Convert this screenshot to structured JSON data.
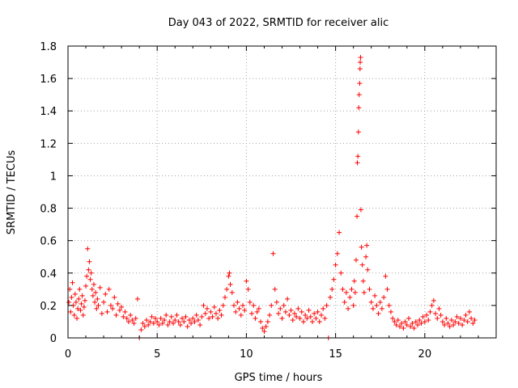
{
  "chart_data": {
    "type": "scatter",
    "title": "Day 043 of 2022, SRMTID for receiver alic",
    "xlabel": "GPS time / hours",
    "ylabel": "SRMTID / TECUs",
    "xlim": [
      0,
      24
    ],
    "ylim": [
      0,
      1.8
    ],
    "xticks": [
      0,
      5,
      10,
      15,
      20
    ],
    "yticks": [
      0,
      0.2,
      0.4,
      0.6,
      0.8,
      1,
      1.2,
      1.4,
      1.6,
      1.8
    ],
    "ytick_labels": [
      "0",
      "0.2",
      "0.4",
      "0.6",
      "0.8",
      "1",
      "1.2",
      "1.4",
      "1.6",
      "1.8"
    ],
    "grid": true,
    "marker": "+",
    "color": "#ff0000",
    "series": [
      {
        "name": "SRMTID",
        "points": [
          [
            0.05,
            0.22
          ],
          [
            0.1,
            0.3
          ],
          [
            0.15,
            0.16
          ],
          [
            0.2,
            0.25
          ],
          [
            0.25,
            0.34
          ],
          [
            0.3,
            0.2
          ],
          [
            0.35,
            0.14
          ],
          [
            0.4,
            0.27
          ],
          [
            0.45,
            0.22
          ],
          [
            0.5,
            0.12
          ],
          [
            0.55,
            0.18
          ],
          [
            0.6,
            0.24
          ],
          [
            0.65,
            0.3
          ],
          [
            0.7,
            0.17
          ],
          [
            0.75,
            0.21
          ],
          [
            0.8,
            0.26
          ],
          [
            0.85,
            0.14
          ],
          [
            0.9,
            0.19
          ],
          [
            0.95,
            0.23
          ],
          [
            1.0,
            0.32
          ],
          [
            1.05,
            0.38
          ],
          [
            1.1,
            0.55
          ],
          [
            1.15,
            0.42
          ],
          [
            1.2,
            0.47
          ],
          [
            1.25,
            0.36
          ],
          [
            1.3,
            0.4
          ],
          [
            1.35,
            0.3
          ],
          [
            1.4,
            0.26
          ],
          [
            1.45,
            0.33
          ],
          [
            1.5,
            0.22
          ],
          [
            1.55,
            0.28
          ],
          [
            1.6,
            0.18
          ],
          [
            1.65,
            0.24
          ],
          [
            1.7,
            0.2
          ],
          [
            1.8,
            0.31
          ],
          [
            1.9,
            0.15
          ],
          [
            2.0,
            0.22
          ],
          [
            2.1,
            0.27
          ],
          [
            2.2,
            0.16
          ],
          [
            2.3,
            0.3
          ],
          [
            2.4,
            0.2
          ],
          [
            2.5,
            0.18
          ],
          [
            2.6,
            0.25
          ],
          [
            2.7,
            0.14
          ],
          [
            2.8,
            0.21
          ],
          [
            2.9,
            0.17
          ],
          [
            3.0,
            0.19
          ],
          [
            3.1,
            0.13
          ],
          [
            3.2,
            0.16
          ],
          [
            3.3,
            0.12
          ],
          [
            3.4,
            0.1
          ],
          [
            3.5,
            0.14
          ],
          [
            3.6,
            0.11
          ],
          [
            3.7,
            0.09
          ],
          [
            3.8,
            0.12
          ],
          [
            3.9,
            0.24
          ],
          [
            4.0,
            0.0
          ],
          [
            4.1,
            0.05
          ],
          [
            4.2,
            0.09
          ],
          [
            4.3,
            0.07
          ],
          [
            4.4,
            0.11
          ],
          [
            4.5,
            0.08
          ],
          [
            4.6,
            0.1
          ],
          [
            4.7,
            0.13
          ],
          [
            4.8,
            0.09
          ],
          [
            4.9,
            0.12
          ],
          [
            5.0,
            0.1
          ],
          [
            5.1,
            0.08
          ],
          [
            5.2,
            0.12
          ],
          [
            5.3,
            0.09
          ],
          [
            5.4,
            0.11
          ],
          [
            5.5,
            0.14
          ],
          [
            5.6,
            0.08
          ],
          [
            5.7,
            0.1
          ],
          [
            5.8,
            0.13
          ],
          [
            5.9,
            0.09
          ],
          [
            6.0,
            0.11
          ],
          [
            6.1,
            0.14
          ],
          [
            6.2,
            0.1
          ],
          [
            6.3,
            0.08
          ],
          [
            6.4,
            0.12
          ],
          [
            6.5,
            0.1
          ],
          [
            6.6,
            0.13
          ],
          [
            6.7,
            0.07
          ],
          [
            6.8,
            0.11
          ],
          [
            6.9,
            0.09
          ],
          [
            7.0,
            0.12
          ],
          [
            7.1,
            0.1
          ],
          [
            7.2,
            0.14
          ],
          [
            7.3,
            0.11
          ],
          [
            7.4,
            0.08
          ],
          [
            7.5,
            0.13
          ],
          [
            7.6,
            0.2
          ],
          [
            7.7,
            0.15
          ],
          [
            7.8,
            0.18
          ],
          [
            7.9,
            0.12
          ],
          [
            8.0,
            0.16
          ],
          [
            8.1,
            0.13
          ],
          [
            8.2,
            0.19
          ],
          [
            8.3,
            0.15
          ],
          [
            8.4,
            0.12
          ],
          [
            8.5,
            0.17
          ],
          [
            8.6,
            0.14
          ],
          [
            8.7,
            0.2
          ],
          [
            8.8,
            0.25
          ],
          [
            8.9,
            0.3
          ],
          [
            9.0,
            0.38
          ],
          [
            9.05,
            0.4
          ],
          [
            9.1,
            0.33
          ],
          [
            9.2,
            0.28
          ],
          [
            9.3,
            0.2
          ],
          [
            9.4,
            0.16
          ],
          [
            9.5,
            0.22
          ],
          [
            9.6,
            0.18
          ],
          [
            9.7,
            0.14
          ],
          [
            9.8,
            0.2
          ],
          [
            9.9,
            0.17
          ],
          [
            10.0,
            0.35
          ],
          [
            10.1,
            0.3
          ],
          [
            10.2,
            0.22
          ],
          [
            10.3,
            0.15
          ],
          [
            10.4,
            0.2
          ],
          [
            10.5,
            0.12
          ],
          [
            10.6,
            0.16
          ],
          [
            10.7,
            0.18
          ],
          [
            10.8,
            0.1
          ],
          [
            10.9,
            0.06
          ],
          [
            11.0,
            0.04
          ],
          [
            11.1,
            0.07
          ],
          [
            11.2,
            0.1
          ],
          [
            11.3,
            0.14
          ],
          [
            11.4,
            0.2
          ],
          [
            11.5,
            0.52
          ],
          [
            11.6,
            0.3
          ],
          [
            11.7,
            0.22
          ],
          [
            11.8,
            0.15
          ],
          [
            11.9,
            0.18
          ],
          [
            12.0,
            0.12
          ],
          [
            12.1,
            0.2
          ],
          [
            12.2,
            0.16
          ],
          [
            12.3,
            0.24
          ],
          [
            12.4,
            0.14
          ],
          [
            12.5,
            0.17
          ],
          [
            12.6,
            0.11
          ],
          [
            12.7,
            0.15
          ],
          [
            12.8,
            0.13
          ],
          [
            12.9,
            0.18
          ],
          [
            13.0,
            0.12
          ],
          [
            13.1,
            0.16
          ],
          [
            13.2,
            0.1
          ],
          [
            13.3,
            0.14
          ],
          [
            13.4,
            0.12
          ],
          [
            13.5,
            0.17
          ],
          [
            13.6,
            0.13
          ],
          [
            13.7,
            0.1
          ],
          [
            13.8,
            0.15
          ],
          [
            13.9,
            0.12
          ],
          [
            14.0,
            0.16
          ],
          [
            14.1,
            0.1
          ],
          [
            14.2,
            0.14
          ],
          [
            14.3,
            0.18
          ],
          [
            14.4,
            0.12
          ],
          [
            14.5,
            0.2
          ],
          [
            14.6,
            0.0
          ],
          [
            14.7,
            0.25
          ],
          [
            14.8,
            0.3
          ],
          [
            14.9,
            0.36
          ],
          [
            15.0,
            0.45
          ],
          [
            15.1,
            0.52
          ],
          [
            15.2,
            0.65
          ],
          [
            15.3,
            0.4
          ],
          [
            15.4,
            0.3
          ],
          [
            15.5,
            0.22
          ],
          [
            15.6,
            0.28
          ],
          [
            15.7,
            0.18
          ],
          [
            15.8,
            0.25
          ],
          [
            15.9,
            0.3
          ],
          [
            16.0,
            0.2
          ],
          [
            16.05,
            0.35
          ],
          [
            16.1,
            0.28
          ],
          [
            16.15,
            0.48
          ],
          [
            16.2,
            0.75
          ],
          [
            16.22,
            1.08
          ],
          [
            16.25,
            1.12
          ],
          [
            16.28,
            1.27
          ],
          [
            16.3,
            1.42
          ],
          [
            16.32,
            1.5
          ],
          [
            16.35,
            1.57
          ],
          [
            16.37,
            1.66
          ],
          [
            16.38,
            1.7
          ],
          [
            16.4,
            1.73
          ],
          [
            16.42,
            0.79
          ],
          [
            16.45,
            0.56
          ],
          [
            16.5,
            0.45
          ],
          [
            16.55,
            0.35
          ],
          [
            16.6,
            0.28
          ],
          [
            16.7,
            0.5
          ],
          [
            16.75,
            0.57
          ],
          [
            16.8,
            0.42
          ],
          [
            16.9,
            0.3
          ],
          [
            17.0,
            0.22
          ],
          [
            17.1,
            0.18
          ],
          [
            17.2,
            0.26
          ],
          [
            17.3,
            0.2
          ],
          [
            17.4,
            0.15
          ],
          [
            17.5,
            0.22
          ],
          [
            17.6,
            0.18
          ],
          [
            17.7,
            0.25
          ],
          [
            17.8,
            0.38
          ],
          [
            17.9,
            0.3
          ],
          [
            18.0,
            0.2
          ],
          [
            18.1,
            0.16
          ],
          [
            18.2,
            0.12
          ],
          [
            18.3,
            0.1
          ],
          [
            18.4,
            0.08
          ],
          [
            18.5,
            0.11
          ],
          [
            18.6,
            0.07
          ],
          [
            18.7,
            0.09
          ],
          [
            18.8,
            0.06
          ],
          [
            18.9,
            0.1
          ],
          [
            19.0,
            0.08
          ],
          [
            19.1,
            0.12
          ],
          [
            19.2,
            0.07
          ],
          [
            19.3,
            0.09
          ],
          [
            19.4,
            0.06
          ],
          [
            19.5,
            0.1
          ],
          [
            19.6,
            0.08
          ],
          [
            19.7,
            0.11
          ],
          [
            19.8,
            0.09
          ],
          [
            19.9,
            0.13
          ],
          [
            20.0,
            0.1
          ],
          [
            20.1,
            0.14
          ],
          [
            20.2,
            0.11
          ],
          [
            20.3,
            0.16
          ],
          [
            20.4,
            0.2
          ],
          [
            20.5,
            0.23
          ],
          [
            20.6,
            0.15
          ],
          [
            20.7,
            0.12
          ],
          [
            20.8,
            0.18
          ],
          [
            20.9,
            0.14
          ],
          [
            21.0,
            0.1
          ],
          [
            21.1,
            0.08
          ],
          [
            21.2,
            0.12
          ],
          [
            21.3,
            0.09
          ],
          [
            21.4,
            0.07
          ],
          [
            21.5,
            0.11
          ],
          [
            21.6,
            0.08
          ],
          [
            21.7,
            0.1
          ],
          [
            21.8,
            0.13
          ],
          [
            21.9,
            0.09
          ],
          [
            22.0,
            0.12
          ],
          [
            22.1,
            0.08
          ],
          [
            22.2,
            0.11
          ],
          [
            22.3,
            0.14
          ],
          [
            22.4,
            0.1
          ],
          [
            22.5,
            0.16
          ],
          [
            22.6,
            0.12
          ],
          [
            22.7,
            0.09
          ],
          [
            22.8,
            0.11
          ]
        ]
      }
    ]
  }
}
